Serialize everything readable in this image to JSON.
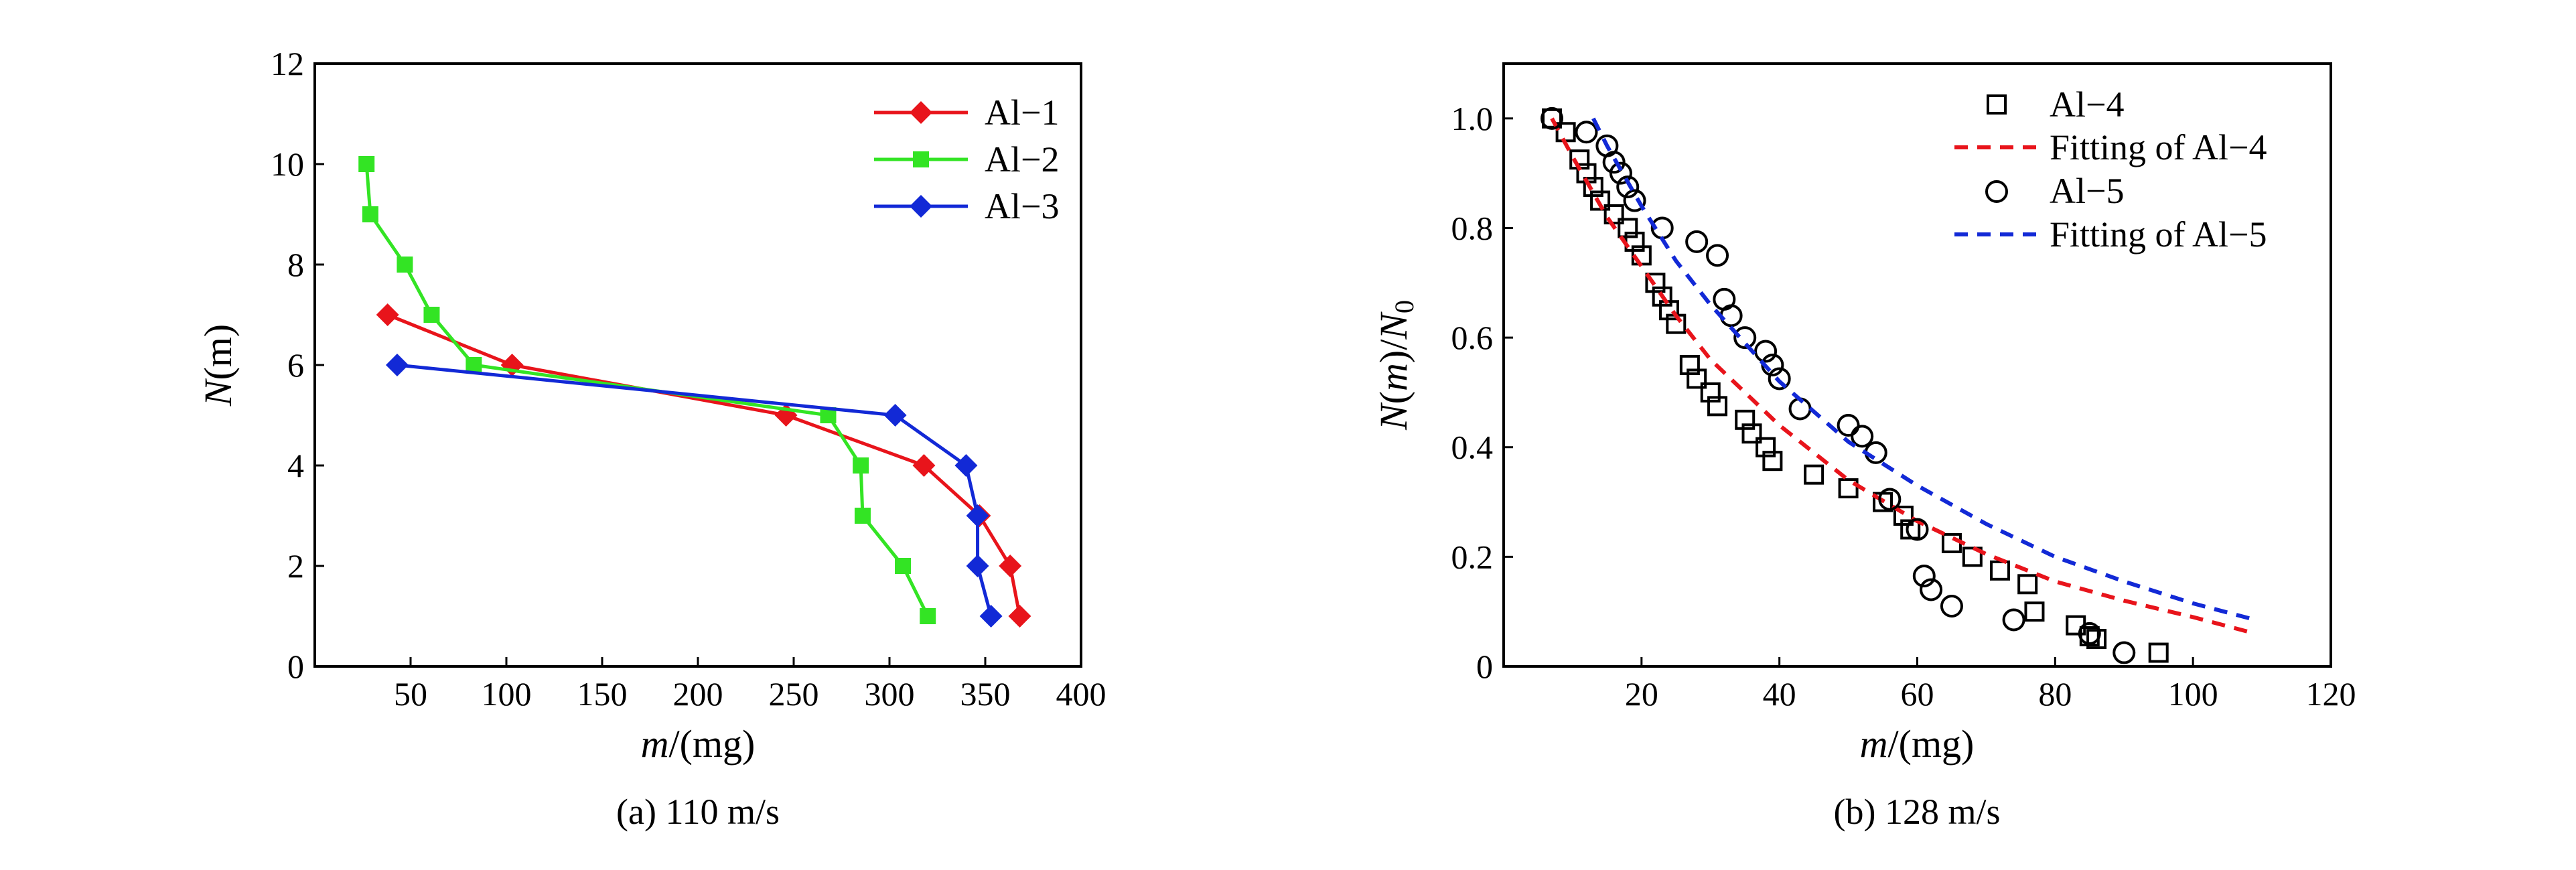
{
  "chart_data": [
    {
      "type": "line",
      "caption": "(a)  110 m/s",
      "xlabel_var": "m",
      "xlabel_unit": "/(mg)",
      "ylabel_var": "N",
      "ylabel_arg": "(m)",
      "xlim": [
        0,
        400
      ],
      "ylim": [
        0,
        12
      ],
      "xticks": [
        "50",
        "100",
        "150",
        "200",
        "250",
        "300",
        "350",
        "400"
      ],
      "yticks": [
        "0",
        "2",
        "4",
        "6",
        "8",
        "10",
        "12"
      ],
      "legend_position": "top-right",
      "series": [
        {
          "name": "Al−1",
          "color": "#e8141b",
          "marker": "diamond",
          "x": [
            38,
            103,
            246,
            318,
            347,
            363,
            368
          ],
          "y": [
            7,
            6,
            5,
            4,
            3,
            2,
            1
          ]
        },
        {
          "name": "Al−2",
          "color": "#33e424",
          "marker": "square",
          "x": [
            27,
            29,
            47,
            61,
            83,
            268,
            285,
            286,
            307,
            320
          ],
          "y": [
            10,
            9,
            8,
            7,
            6,
            5,
            4,
            3,
            2,
            1
          ]
        },
        {
          "name": "Al−3",
          "color": "#1229d6",
          "marker": "diamond",
          "x": [
            43,
            303,
            340,
            346,
            346,
            353
          ],
          "y": [
            6,
            5,
            4,
            3,
            2,
            1
          ]
        }
      ]
    },
    {
      "type": "scatter",
      "caption": "(b)  128 m/s",
      "xlabel_var": "m",
      "xlabel_unit": "/(mg)",
      "ylabel_html": "N(m)/N0",
      "xlim": [
        0,
        120
      ],
      "ylim": [
        0,
        1.1
      ],
      "xticks": [
        "20",
        "40",
        "60",
        "80",
        "100",
        "120"
      ],
      "yticks": [
        "0",
        "0.2",
        "0.4",
        "0.6",
        "0.8",
        "1.0"
      ],
      "legend_position": "top-right",
      "series": [
        {
          "name": "Al−4",
          "marker": "square-open",
          "color": "#000000",
          "x": [
            7,
            9,
            11,
            12,
            13,
            14,
            16,
            18,
            19,
            20,
            22,
            23,
            24,
            25,
            27,
            28,
            30,
            31,
            35,
            36,
            38,
            39,
            45,
            50,
            55,
            58,
            59,
            65,
            68,
            72,
            76,
            77,
            83,
            85,
            86,
            95
          ],
          "y": [
            1.0,
            0.975,
            0.925,
            0.9,
            0.875,
            0.85,
            0.825,
            0.8,
            0.775,
            0.75,
            0.7,
            0.675,
            0.65,
            0.625,
            0.55,
            0.525,
            0.5,
            0.475,
            0.45,
            0.425,
            0.4,
            0.375,
            0.35,
            0.325,
            0.3,
            0.275,
            0.25,
            0.225,
            0.2,
            0.175,
            0.15,
            0.1,
            0.075,
            0.055,
            0.05,
            0.025
          ]
        },
        {
          "name": "Fitting of Al−4",
          "line": "dashed",
          "color": "#e8141b",
          "x": [
            7,
            10,
            15,
            20,
            25,
            30,
            40,
            50,
            60,
            70,
            80,
            90,
            100,
            109
          ],
          "y": [
            1.0,
            0.93,
            0.82,
            0.73,
            0.64,
            0.56,
            0.44,
            0.34,
            0.265,
            0.205,
            0.155,
            0.12,
            0.09,
            0.06
          ]
        },
        {
          "name": "Al−5",
          "marker": "circle-open",
          "color": "#000000",
          "x": [
            7,
            12,
            15,
            16,
            17,
            18,
            19,
            23,
            28,
            31,
            32,
            33,
            35,
            38,
            39,
            40,
            43,
            50,
            52,
            54,
            56,
            60,
            61,
            62,
            65,
            74,
            85,
            90
          ],
          "y": [
            1.0,
            0.975,
            0.95,
            0.92,
            0.9,
            0.875,
            0.85,
            0.8,
            0.775,
            0.75,
            0.67,
            0.64,
            0.6,
            0.575,
            0.55,
            0.525,
            0.47,
            0.44,
            0.42,
            0.39,
            0.305,
            0.25,
            0.165,
            0.14,
            0.11,
            0.085,
            0.06,
            0.025
          ]
        },
        {
          "name": "Fitting of Al−5",
          "line": "dashed",
          "color": "#1229d6",
          "x": [
            13,
            15,
            20,
            25,
            30,
            40,
            50,
            60,
            70,
            80,
            90,
            100,
            109
          ],
          "y": [
            1.0,
            0.95,
            0.84,
            0.74,
            0.66,
            0.52,
            0.41,
            0.33,
            0.26,
            0.2,
            0.155,
            0.115,
            0.085
          ]
        }
      ]
    }
  ]
}
